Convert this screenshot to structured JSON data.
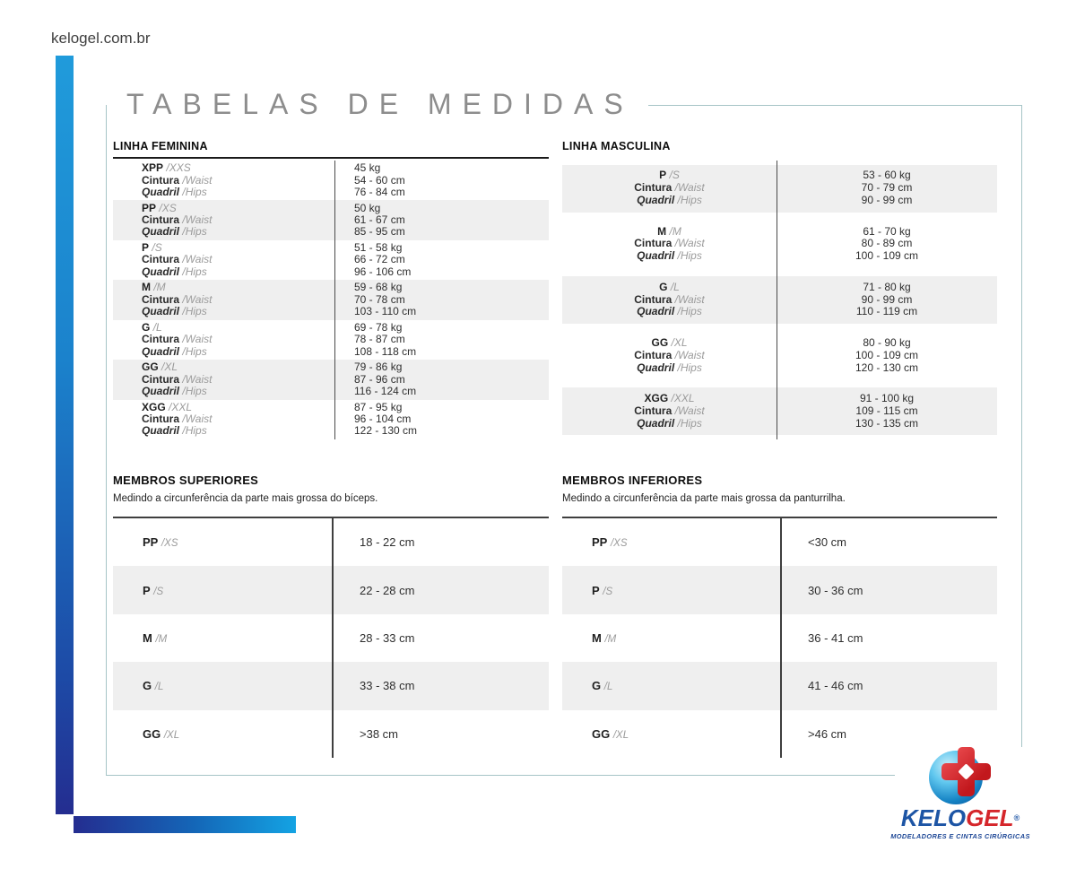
{
  "site_url": "kelogel.com.br",
  "page_title": "TABELAS DE MEDIDAS",
  "measure_labels": {
    "waist": "Cintura",
    "waist_alt": "/Waist",
    "hips": "Quadril",
    "hips_alt": "/Hips"
  },
  "tables": {
    "feminina": {
      "title": "LINHA FEMININA",
      "rows": [
        {
          "size": "XPP",
          "size_alt": "/XXS",
          "weight": "45 kg",
          "waist": "54 - 60 cm",
          "hips": "76 - 84 cm"
        },
        {
          "size": "PP",
          "size_alt": "/XS",
          "weight": "50 kg",
          "waist": "61 - 67 cm",
          "hips": "85 - 95 cm"
        },
        {
          "size": "P",
          "size_alt": "/S",
          "weight": "51 - 58 kg",
          "waist": "66 - 72 cm",
          "hips": "96 - 106 cm"
        },
        {
          "size": "M",
          "size_alt": "/M",
          "weight": "59 - 68 kg",
          "waist": "70 - 78 cm",
          "hips": "103 - 110 cm"
        },
        {
          "size": "G",
          "size_alt": "/L",
          "weight": "69 - 78 kg",
          "waist": "78 - 87 cm",
          "hips": "108 - 118 cm"
        },
        {
          "size": "GG",
          "size_alt": "/XL",
          "weight": "79 - 86 kg",
          "waist": "87 - 96 cm",
          "hips": "116 - 124 cm"
        },
        {
          "size": "XGG",
          "size_alt": "/XXL",
          "weight": "87 - 95 kg",
          "waist": "96 - 104 cm",
          "hips": "122 - 130 cm"
        }
      ]
    },
    "masculina": {
      "title": "LINHA MASCULINA",
      "rows": [
        {
          "size": "P",
          "size_alt": "/S",
          "weight": "53 - 60 kg",
          "waist": "70 - 79 cm",
          "hips": "90 - 99 cm"
        },
        {
          "size": "M",
          "size_alt": "/M",
          "weight": "61 - 70 kg",
          "waist": "80 - 89 cm",
          "hips": "100 - 109 cm"
        },
        {
          "size": "G",
          "size_alt": "/L",
          "weight": "71 - 80 kg",
          "waist": "90 - 99 cm",
          "hips": "110 - 119 cm"
        },
        {
          "size": "GG",
          "size_alt": "/XL",
          "weight": "80 - 90 kg",
          "waist": "100 - 109 cm",
          "hips": "120 - 130 cm"
        },
        {
          "size": "XGG",
          "size_alt": "/XXL",
          "weight": "91 - 100 kg",
          "waist": "109 - 115 cm",
          "hips": "130 - 135 cm"
        }
      ]
    },
    "superiores": {
      "title": "MEMBROS SUPERIORES",
      "description": "Medindo a circunferência da parte mais grossa do bíceps.",
      "rows": [
        {
          "size": "PP",
          "size_alt": "/XS",
          "value": "18 - 22 cm"
        },
        {
          "size": "P",
          "size_alt": "/S",
          "value": "22 - 28 cm"
        },
        {
          "size": "M",
          "size_alt": "/M",
          "value": "28 - 33 cm"
        },
        {
          "size": "G",
          "size_alt": "/L",
          "value": "33 - 38 cm"
        },
        {
          "size": "GG",
          "size_alt": "/XL",
          "value": ">38 cm"
        }
      ]
    },
    "inferiores": {
      "title": "MEMBROS INFERIORES",
      "description": "Medindo a circunferência da parte mais grossa da panturrilha.",
      "rows": [
        {
          "size": "PP",
          "size_alt": "/XS",
          "value": "<30 cm"
        },
        {
          "size": "P",
          "size_alt": "/S",
          "value": "30 - 36 cm"
        },
        {
          "size": "M",
          "size_alt": "/M",
          "value": "36 - 41 cm"
        },
        {
          "size": "G",
          "size_alt": "/L",
          "value": "41 - 46 cm"
        },
        {
          "size": "GG",
          "size_alt": "/XL",
          "value": ">46 cm"
        }
      ]
    }
  },
  "logo": {
    "brand_primary": "KELO",
    "brand_secondary": "GEL",
    "registered_mark": "®",
    "tagline": "MODELADORES E CINTAS CIRÚRGICAS"
  },
  "colors": {
    "accent_blue_light": "#209bdb",
    "accent_blue_dark": "#242d90",
    "stripe_gray": "#efefef",
    "frame_teal": "#a6c4c6",
    "title_gray": "#8d8d8d",
    "logo_blue": "#1d55a5",
    "logo_red": "#d5262b"
  }
}
